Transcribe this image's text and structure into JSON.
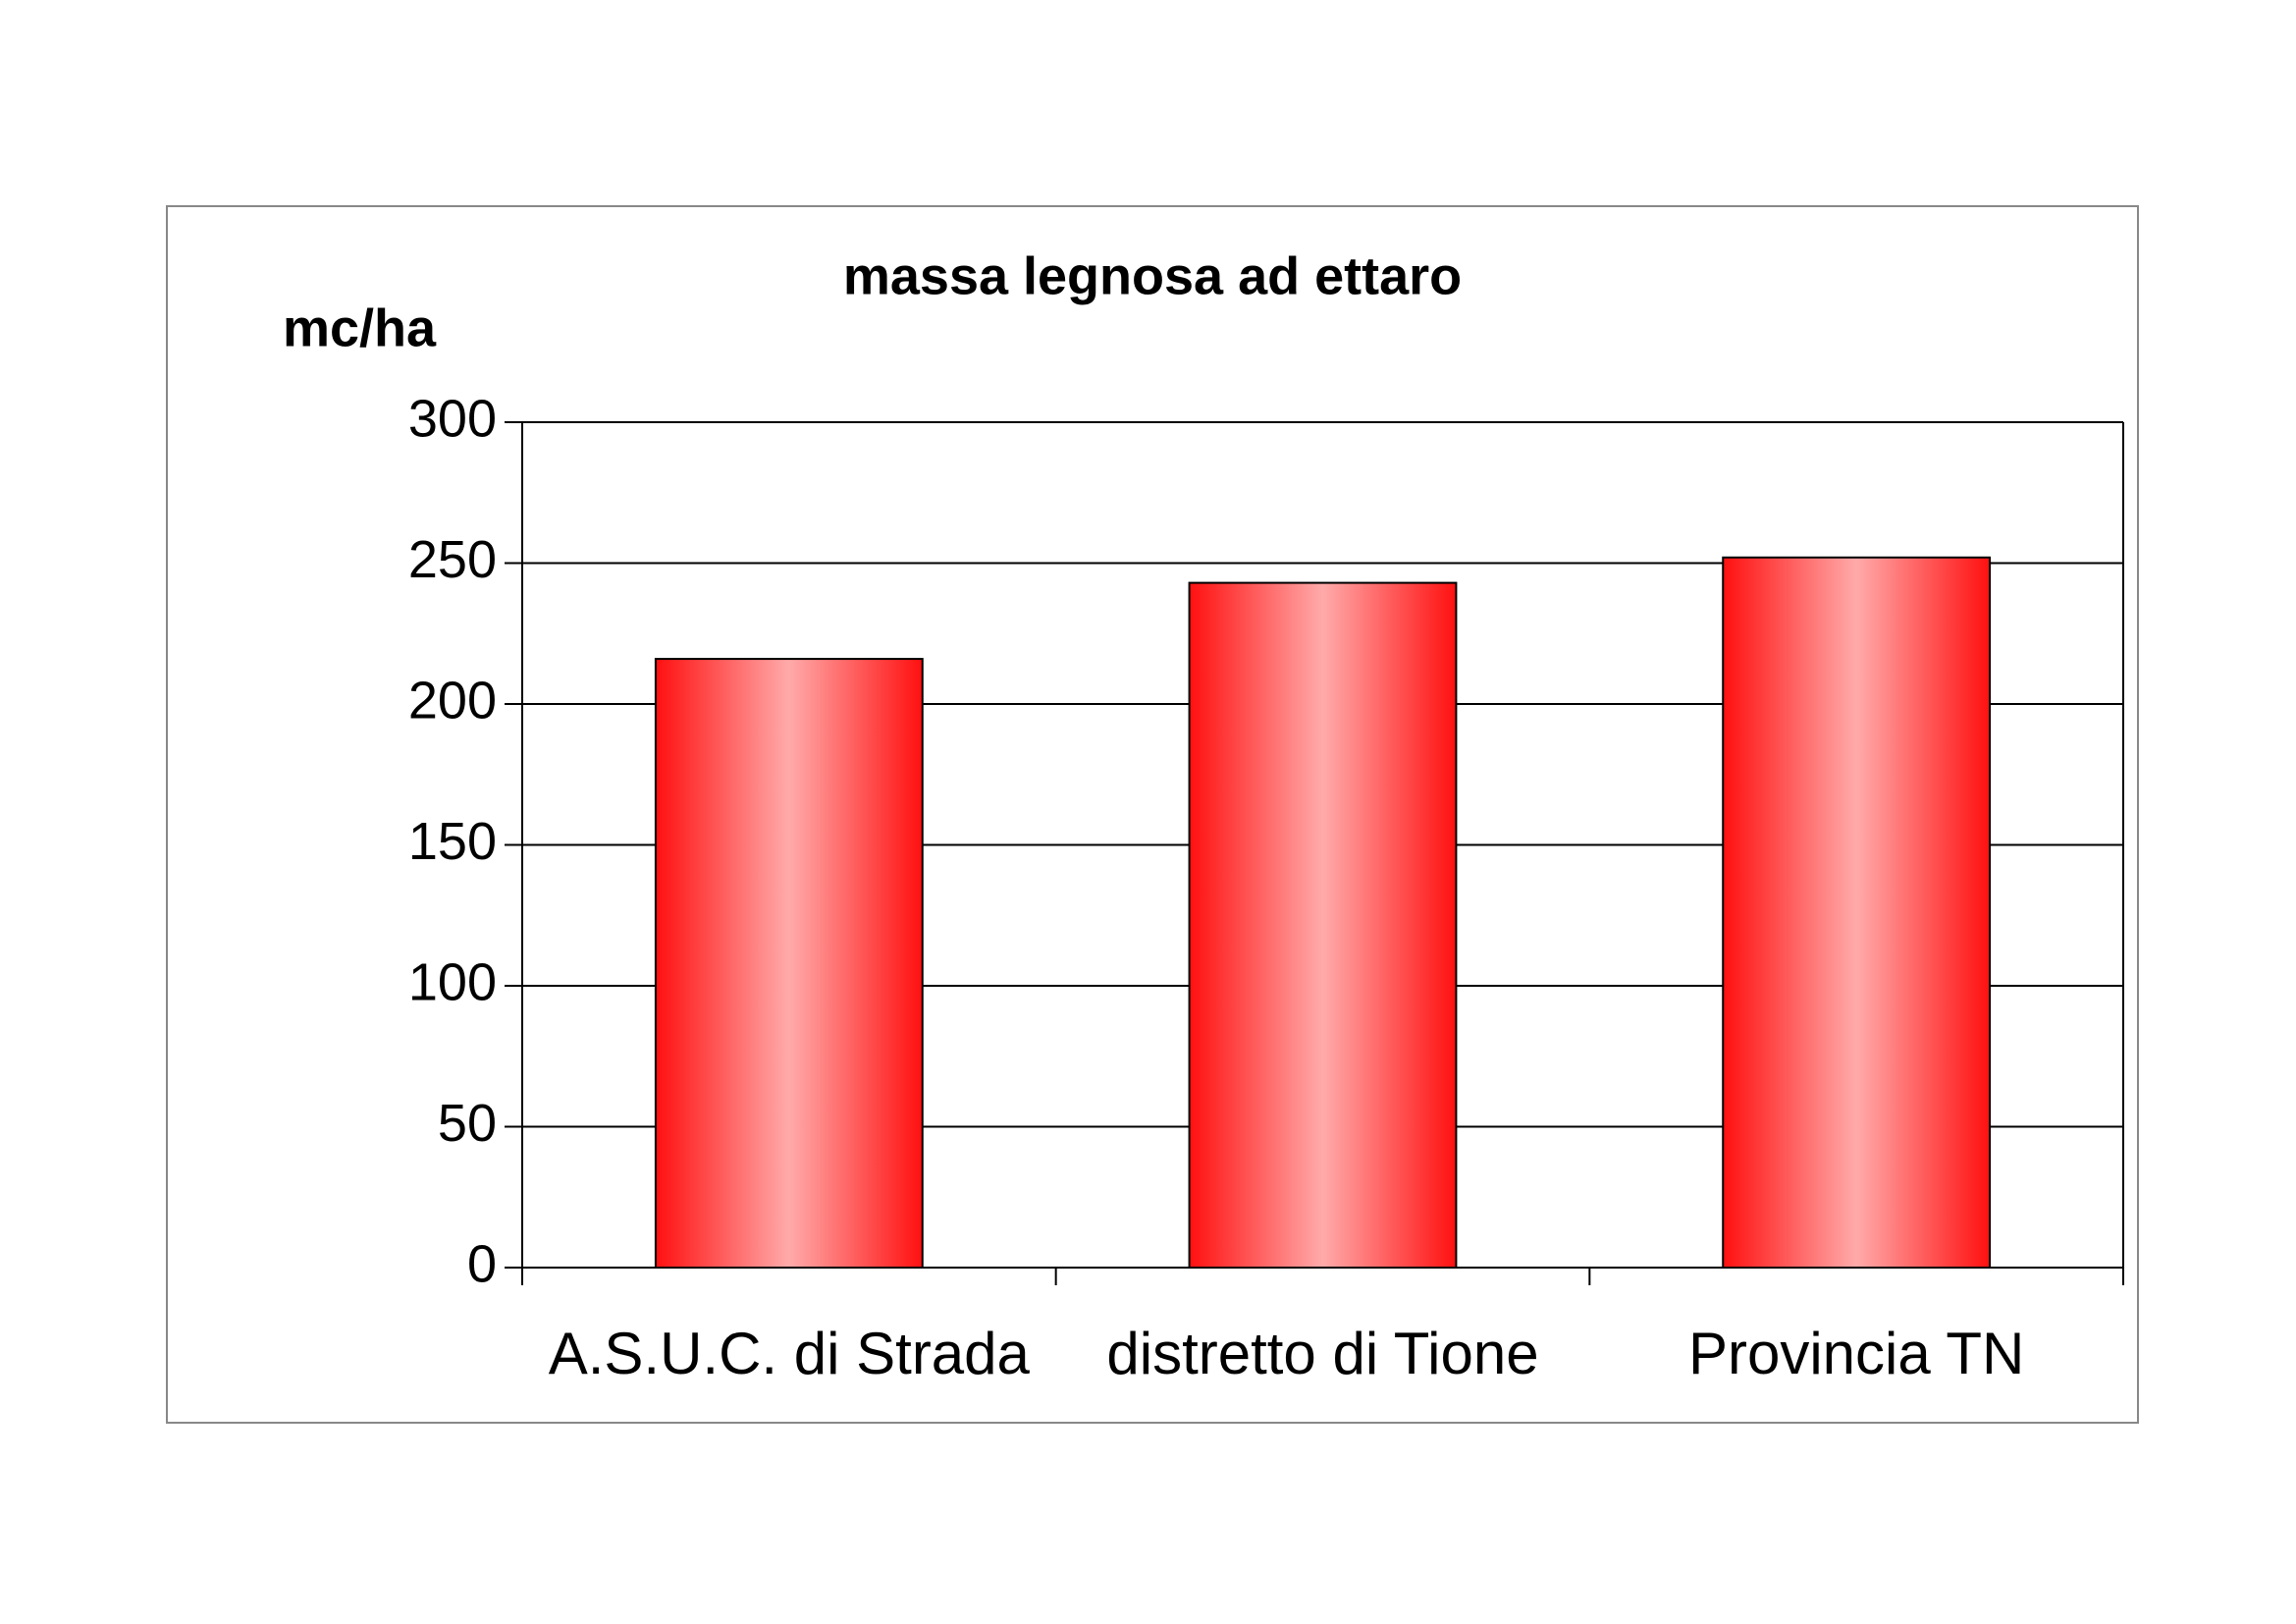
{
  "chart_data": {
    "type": "bar",
    "title": "massa legnosa ad ettaro",
    "y_label": "mc/ha",
    "categories": [
      "A.S.U.C. di Strada",
      "distretto di Tione",
      "Provincia TN"
    ],
    "values": [
      216,
      243,
      252
    ],
    "color": "#ff1010",
    "ylim": [
      0,
      300
    ],
    "yticks": [
      0,
      50,
      100,
      150,
      200,
      250,
      300
    ],
    "grid": true
  }
}
